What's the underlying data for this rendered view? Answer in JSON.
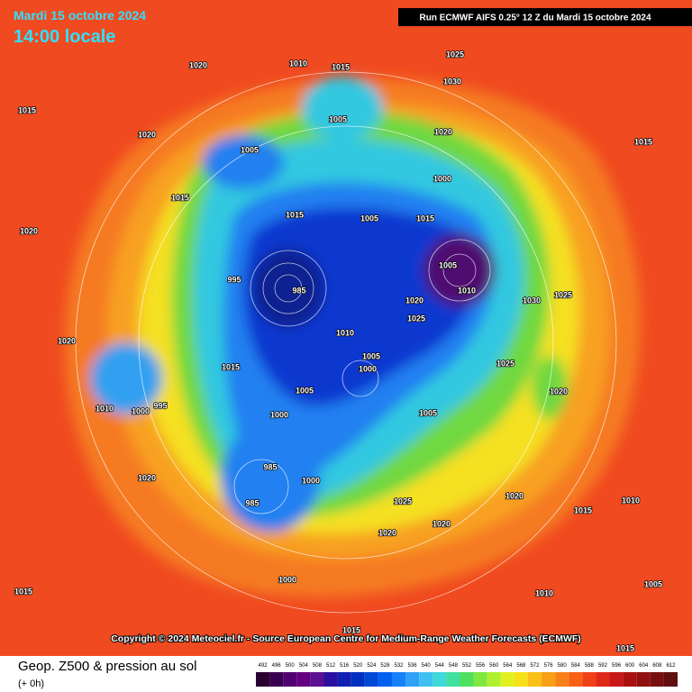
{
  "header": {
    "date": "Mardi 15 octobre 2024",
    "time": "14:00 locale",
    "run": "Run ECMWF AIFS 0.25° 12 Z du Mardi 15 octobre 2024"
  },
  "copyright": "Copyright © 2024 Meteociel.fr - Source European Centre for Medium-Range Weather Forecasts (ECMWF)",
  "legend": {
    "title": "Geop. Z500 & pression au sol",
    "lead": "(+ 0h)",
    "levels": [
      492,
      496,
      500,
      504,
      508,
      512,
      516,
      520,
      524,
      528,
      532,
      536,
      540,
      544,
      548,
      552,
      556,
      560,
      564,
      568,
      572,
      576,
      580,
      584,
      588,
      592,
      596,
      600,
      604,
      608,
      612
    ],
    "colors": [
      "#2a0030",
      "#3a0050",
      "#500070",
      "#640080",
      "#5a1090",
      "#2a10a0",
      "#1020b0",
      "#0030c0",
      "#0048d8",
      "#0060f0",
      "#1880f8",
      "#30a0f8",
      "#40c0f0",
      "#40d8d8",
      "#40e0a0",
      "#50e060",
      "#80e840",
      "#b0f030",
      "#e0f020",
      "#f8e018",
      "#f8c018",
      "#f8a018",
      "#f88018",
      "#f86018",
      "#f04018",
      "#e02818",
      "#c81818",
      "#a81010",
      "#901010",
      "#781010",
      "#601010"
    ]
  },
  "isobar_labels": [
    "1020",
    "1010",
    "1015",
    "1025",
    "1030",
    "1015",
    "1005",
    "1020",
    "1020",
    "1015",
    "1005",
    "1000",
    "1015",
    "1005",
    "1015",
    "1020",
    "995",
    "985",
    "1005",
    "1010",
    "1020",
    "1025",
    "1030",
    "1025",
    "1010",
    "1005",
    "1000",
    "1015",
    "1020",
    "1020",
    "1025",
    "1005",
    "1000",
    "1010",
    "1000",
    "995",
    "1005",
    "985",
    "985",
    "1000",
    "1025",
    "1020",
    "1020",
    "1020",
    "1020",
    "1000",
    "1015",
    "1015",
    "1015",
    "1010",
    "1015",
    "1010",
    "1005",
    "1015"
  ]
}
